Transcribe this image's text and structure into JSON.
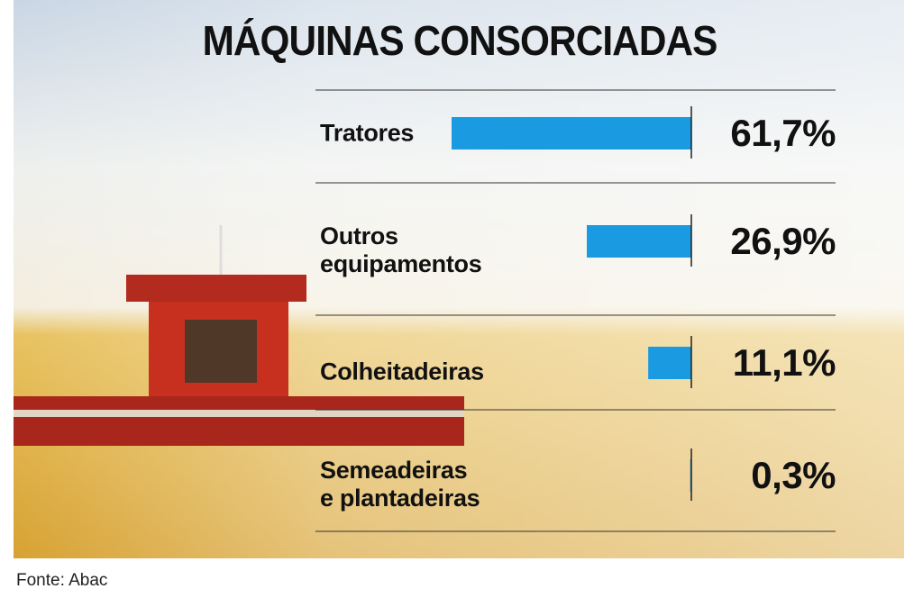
{
  "chart_data": {
    "type": "bar",
    "orientation": "horizontal",
    "title": "MÁQUINAS CONSORCIADAS",
    "categories": [
      "Tratores",
      "Outros\nequipamentos",
      "Colheitadeiras",
      "Semeadeiras\ne plantadeiras"
    ],
    "values": [
      61.7,
      26.9,
      11.1,
      0.3
    ],
    "value_labels": [
      "61,7%",
      "26,9%",
      "11,1%",
      "0,3%"
    ],
    "color": "#1a9ae0",
    "source": "Fonte: Abac"
  }
}
